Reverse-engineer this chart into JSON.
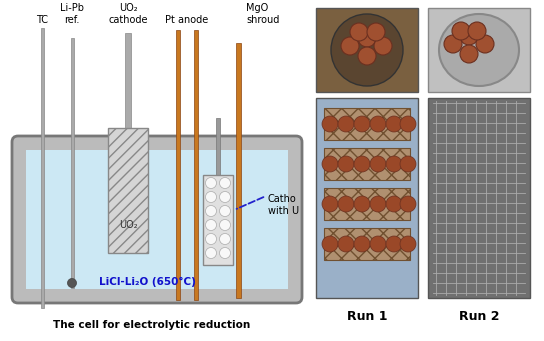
{
  "caption_left": "The cell for electrolytic reduction",
  "caption_run1": "Run 1",
  "caption_run2": "Run 2",
  "licl_label": "LiCl-Li₂O (650°C)",
  "labels": {
    "TC": "TC",
    "LiPb": "Li-Pb\nref.",
    "UO2_cathode": "UO₂\ncathode",
    "Pt_anode": "Pt anode",
    "MgO_shroud": "MgO\nshroud",
    "cathode_label": "Catho\nwith U",
    "UO2_bottom": "UO₂"
  },
  "colors": {
    "background": "#ffffff",
    "tank_fill": "#cce8f4",
    "tank_border": "#888888",
    "rod_gray": "#aaaaaa",
    "rod_orange": "#c87820",
    "licl_text": "#1111cc",
    "dashed_line": "#2222cc",
    "caption_color": "#000000"
  }
}
